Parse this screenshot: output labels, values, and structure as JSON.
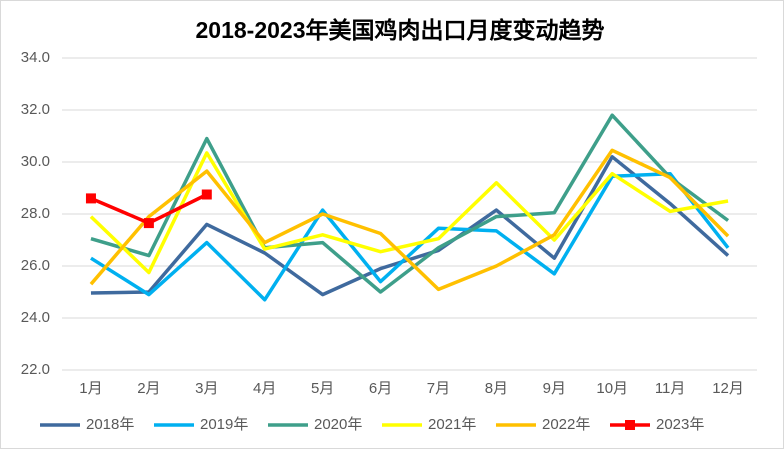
{
  "chart_data": {
    "type": "line",
    "title": "2018-2023年美国鸡肉出口月度变动趋势",
    "categories": [
      "1月",
      "2月",
      "3月",
      "4月",
      "5月",
      "6月",
      "7月",
      "8月",
      "9月",
      "10月",
      "11月",
      "12月"
    ],
    "series": [
      {
        "name": "2018年",
        "color": "#3f6a9e",
        "values": [
          24.96,
          25.0,
          27.6,
          26.5,
          24.9,
          25.9,
          26.6,
          28.15,
          26.3,
          30.2,
          28.4,
          26.4
        ]
      },
      {
        "name": "2019年",
        "color": "#00b0f0",
        "values": [
          26.3,
          24.9,
          26.9,
          24.7,
          28.15,
          25.4,
          27.45,
          27.35,
          25.7,
          29.45,
          29.55,
          26.7
        ]
      },
      {
        "name": "2020年",
        "color": "#3e9f8a",
        "values": [
          27.05,
          26.4,
          30.9,
          26.7,
          26.9,
          25.0,
          26.7,
          27.9,
          28.05,
          31.8,
          29.4,
          27.75
        ]
      },
      {
        "name": "2021年",
        "color": "#ffff00",
        "values": [
          27.9,
          25.75,
          30.35,
          26.65,
          27.2,
          26.55,
          27.05,
          29.2,
          27.0,
          29.55,
          28.1,
          28.5
        ]
      },
      {
        "name": "2022年",
        "color": "#ffc000",
        "values": [
          25.3,
          27.9,
          29.65,
          26.9,
          28.0,
          27.25,
          25.1,
          26.0,
          27.2,
          30.45,
          29.4,
          27.15
        ]
      },
      {
        "name": "2023年",
        "color": "#ff0000",
        "marker": "square",
        "values": [
          28.6,
          27.65,
          28.75,
          null,
          null,
          null,
          null,
          null,
          null,
          null,
          null,
          null
        ]
      }
    ],
    "ylim": [
      22,
      34
    ],
    "yticks": [
      {
        "value": 22,
        "label": "22.0"
      },
      {
        "value": 24,
        "label": "24.0"
      },
      {
        "value": 26,
        "label": "26.0"
      },
      {
        "value": 28,
        "label": "28.0"
      },
      {
        "value": 30,
        "label": "30.0"
      },
      {
        "value": 32,
        "label": "32.0"
      },
      {
        "value": 34,
        "label": "34.0"
      }
    ],
    "grid": true,
    "legend": "bottom"
  }
}
